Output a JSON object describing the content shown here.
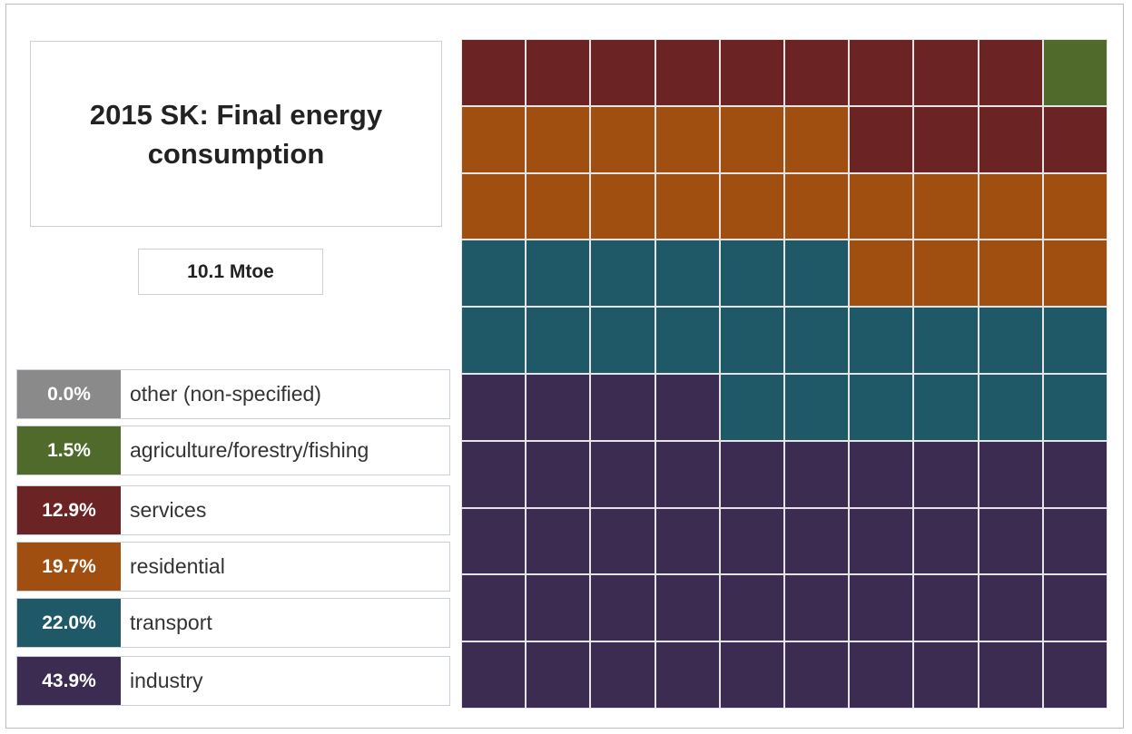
{
  "chart_data": {
    "type": "waffle",
    "title": "2015 SK: Final energy consumption",
    "total": "10.1 Mtoe",
    "grid": {
      "rows": 10,
      "cols": 10
    },
    "series": [
      {
        "name": "other (non-specified)",
        "label": "0.0%",
        "value": 0.0,
        "color": "#8a8a8a"
      },
      {
        "name": "agriculture/forestry/fishing",
        "label": "1.5%",
        "value": 1.5,
        "color": "#4f6a2a"
      },
      {
        "name": "services",
        "label": "12.9%",
        "value": 12.9,
        "color": "#6b2323"
      },
      {
        "name": "residential",
        "label": "19.7%",
        "value": 19.7,
        "color": "#a14f10"
      },
      {
        "name": "transport",
        "label": "22.0%",
        "value": 22.0,
        "color": "#1f5866"
      },
      {
        "name": "industry",
        "label": "43.9%",
        "value": 43.9,
        "color": "#3c2c52"
      }
    ]
  }
}
